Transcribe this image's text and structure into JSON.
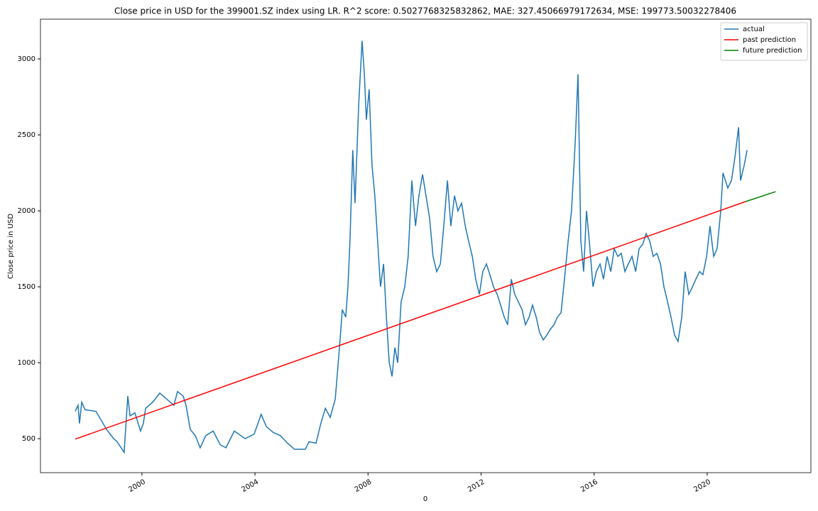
{
  "chart_data": {
    "type": "line",
    "title": "Close price in USD for the 399001.SZ index using LR. R^2 score: 0.5027768325832862, MAE: 327.45066979172634, MSE: 199773.50032278406",
    "x_label": "0",
    "y_label": "Close price in USD",
    "xlim": [
      1996.41,
      2023.67
    ],
    "ylim": [
      276,
      3262
    ],
    "xticks": [
      2000,
      2004,
      2008,
      2012,
      2016,
      2020
    ],
    "yticks": [
      500,
      1000,
      1500,
      2000,
      2500,
      3000
    ],
    "grid": false,
    "legend": "upper right",
    "series": [
      {
        "name": "actual",
        "color": "#1f77b4",
        "x": [
          1997.64,
          1997.74,
          1997.79,
          1997.87,
          1997.99,
          1998.37,
          1998.5,
          1998.75,
          1999.0,
          1999.12,
          1999.37,
          1999.5,
          1999.58,
          1999.75,
          1999.95,
          2000.05,
          2000.13,
          2000.38,
          2000.63,
          2000.88,
          2001.13,
          2001.26,
          2001.46,
          2001.56,
          2001.71,
          2001.89,
          2002.06,
          2002.26,
          2002.52,
          2002.77,
          2002.97,
          2003.27,
          2003.65,
          2003.97,
          2004.22,
          2004.4,
          2004.65,
          2004.9,
          2005.15,
          2005.4,
          2005.78,
          2005.91,
          2006.16,
          2006.33,
          2006.49,
          2006.66,
          2006.84,
          2006.99,
          2007.09,
          2007.21,
          2007.29,
          2007.36,
          2007.46,
          2007.54,
          2007.67,
          2007.79,
          2007.87,
          2007.94,
          2008.04,
          2008.14,
          2008.24,
          2008.34,
          2008.44,
          2008.55,
          2008.65,
          2008.75,
          2008.85,
          2008.95,
          2009.05,
          2009.17,
          2009.3,
          2009.42,
          2009.55,
          2009.68,
          2009.8,
          2009.93,
          2010.05,
          2010.18,
          2010.3,
          2010.43,
          2010.56,
          2010.68,
          2010.81,
          2010.93,
          2011.06,
          2011.18,
          2011.31,
          2011.44,
          2011.56,
          2011.69,
          2011.81,
          2011.94,
          2012.06,
          2012.19,
          2012.31,
          2012.44,
          2012.57,
          2012.69,
          2012.82,
          2012.94,
          2013.07,
          2013.19,
          2013.32,
          2013.45,
          2013.57,
          2013.7,
          2013.82,
          2013.95,
          2014.07,
          2014.2,
          2014.32,
          2014.45,
          2014.58,
          2014.7,
          2014.83,
          2014.95,
          2015.08,
          2015.2,
          2015.33,
          2015.43,
          2015.53,
          2015.63,
          2015.73,
          2015.83,
          2015.96,
          2016.08,
          2016.21,
          2016.33,
          2016.46,
          2016.59,
          2016.71,
          2016.84,
          2016.96,
          2017.09,
          2017.21,
          2017.34,
          2017.47,
          2017.59,
          2017.72,
          2017.84,
          2017.97,
          2018.09,
          2018.22,
          2018.35,
          2018.47,
          2018.6,
          2018.72,
          2018.85,
          2018.97,
          2019.1,
          2019.22,
          2019.35,
          2019.48,
          2019.6,
          2019.73,
          2019.85,
          2019.98,
          2020.1,
          2020.23,
          2020.35,
          2020.48,
          2020.56,
          2020.73,
          2020.86,
          2020.98,
          2021.11,
          2021.18,
          2021.31,
          2021.41
        ],
        "values": [
          680,
          720,
          600,
          740,
          690,
          680,
          640,
          560,
          500,
          480,
          410,
          780,
          650,
          670,
          550,
          600,
          700,
          740,
          800,
          760,
          720,
          810,
          780,
          720,
          560,
          520,
          440,
          520,
          550,
          460,
          440,
          550,
          500,
          530,
          660,
          580,
          540,
          520,
          470,
          430,
          430,
          480,
          470,
          600,
          700,
          640,
          760,
          1100,
          1350,
          1300,
          1500,
          1800,
          2400,
          2050,
          2700,
          3120,
          2900,
          2600,
          2800,
          2300,
          2100,
          1800,
          1500,
          1650,
          1300,
          1000,
          910,
          1100,
          1000,
          1400,
          1500,
          1700,
          2200,
          1900,
          2100,
          2240,
          2100,
          1950,
          1700,
          1600,
          1650,
          1900,
          2200,
          1900,
          2100,
          2000,
          2050,
          1900,
          1800,
          1700,
          1550,
          1450,
          1600,
          1650,
          1580,
          1500,
          1450,
          1380,
          1300,
          1250,
          1550,
          1450,
          1400,
          1350,
          1250,
          1300,
          1380,
          1300,
          1200,
          1150,
          1180,
          1220,
          1250,
          1300,
          1330,
          1550,
          1800,
          2000,
          2450,
          2900,
          1800,
          1600,
          2000,
          1800,
          1500,
          1600,
          1650,
          1550,
          1700,
          1600,
          1750,
          1700,
          1720,
          1600,
          1650,
          1700,
          1600,
          1750,
          1780,
          1850,
          1800,
          1700,
          1720,
          1650,
          1500,
          1400,
          1300,
          1180,
          1140,
          1300,
          1600,
          1450,
          1500,
          1550,
          1600,
          1580,
          1700,
          1900,
          1700,
          1750,
          2000,
          2250,
          2150,
          2200,
          2350,
          2550,
          2200,
          2300,
          2400
        ]
      },
      {
        "name": "past prediction",
        "color": "#ff0000",
        "x": [
          1997.64,
          2021.36
        ],
        "values": [
          497,
          2061
        ]
      },
      {
        "name": "future prediction",
        "color": "#008000",
        "x": [
          2021.36,
          2022.42
        ],
        "values": [
          2061,
          2126
        ]
      }
    ]
  }
}
